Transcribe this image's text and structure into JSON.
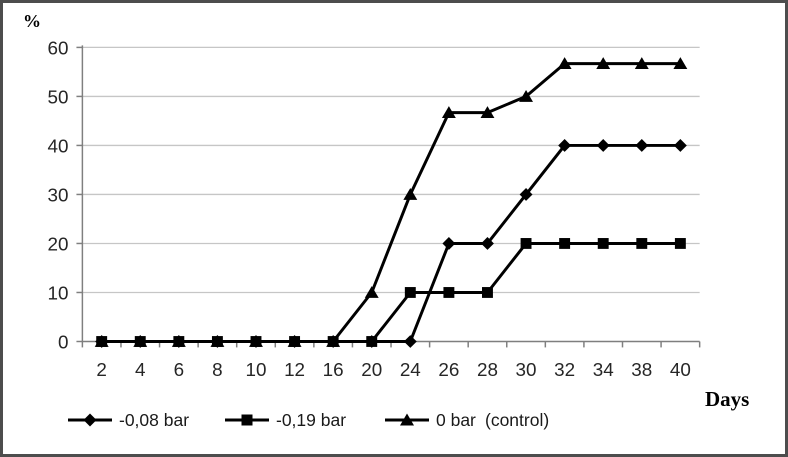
{
  "window": {
    "background": "#ffffff",
    "border_color": "#4d4d4d"
  },
  "chart_data": {
    "type": "line",
    "title": "",
    "ylabel": "%",
    "xlabel": "Days",
    "categories": [
      "2",
      "4",
      "6",
      "8",
      "10",
      "12",
      "16",
      "20",
      "24",
      "26",
      "28",
      "30",
      "32",
      "34",
      "38",
      "40"
    ],
    "y_ticks": [
      0,
      10,
      20,
      30,
      40,
      50,
      60
    ],
    "ylim": [
      0,
      60
    ],
    "grid": "horizontal-only",
    "legend_position": "bottom",
    "series": [
      {
        "name": "-0,08 bar",
        "marker": "diamond",
        "color": "#000000",
        "values": [
          0,
          0,
          0,
          0,
          0,
          0,
          0,
          0,
          0,
          20,
          20,
          30,
          40,
          40,
          40,
          40
        ]
      },
      {
        "name": "-0,19 bar",
        "marker": "square",
        "color": "#000000",
        "values": [
          0,
          0,
          0,
          0,
          0,
          0,
          0,
          0,
          10,
          10,
          10,
          20,
          20,
          20,
          20,
          20
        ]
      },
      {
        "name": "0 bar",
        "note": "(control)",
        "marker": "triangle",
        "color": "#000000",
        "values": [
          0,
          0,
          0,
          0,
          0,
          0,
          0,
          10,
          30,
          46.7,
          46.7,
          50,
          56.7,
          56.7,
          56.7,
          56.7
        ]
      }
    ],
    "colors": {
      "line": "#000000",
      "grid": "#c6c6c6",
      "axis": "#7f7f7f",
      "tick_text": "#262626"
    }
  }
}
